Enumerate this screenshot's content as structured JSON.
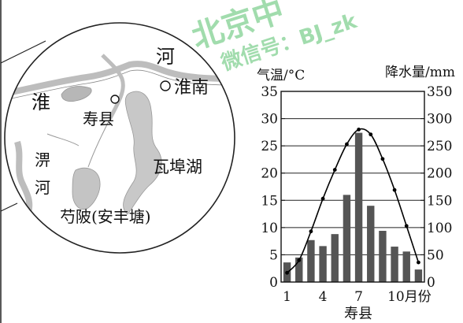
{
  "map": {
    "labels": {
      "river_top": "河",
      "huainan": "淮南",
      "huai": "淮",
      "shouxian": "寿县",
      "pi_1": "淠",
      "pi_2": "河",
      "wabu_lake": "瓦埠湖",
      "shaopi": "芍陂(安丰塘)"
    }
  },
  "watermark": {
    "line1": "北京中",
    "line2": "微信号：BJ_zk"
  },
  "chart_data": {
    "type": "bar+line",
    "title": "寿县",
    "left_axis_label": "气温/°C",
    "right_axis_label": "降水量/mm",
    "x_tick_labels": [
      "1",
      "4",
      "7",
      "10月份"
    ],
    "x_tick_months": [
      1,
      4,
      7,
      10
    ],
    "months": [
      1,
      2,
      3,
      4,
      5,
      6,
      7,
      8,
      9,
      10,
      11,
      12
    ],
    "left_ylim": [
      0,
      35
    ],
    "left_ticks": [
      0,
      5,
      10,
      15,
      20,
      25,
      30,
      35
    ],
    "right_ylim": [
      0,
      350
    ],
    "right_ticks": [
      0,
      50,
      100,
      150,
      200,
      250,
      300,
      350
    ],
    "precipitation_mm": [
      36,
      45,
      77,
      66,
      88,
      160,
      274,
      140,
      94,
      65,
      56,
      23
    ],
    "temperature_c": [
      1.7,
      4.0,
      9.3,
      15.3,
      20.6,
      25.3,
      28.0,
      27.1,
      22.6,
      16.9,
      10.3,
      3.6
    ],
    "bar_color": "#555555",
    "line_color": "#000000",
    "grid": true
  }
}
